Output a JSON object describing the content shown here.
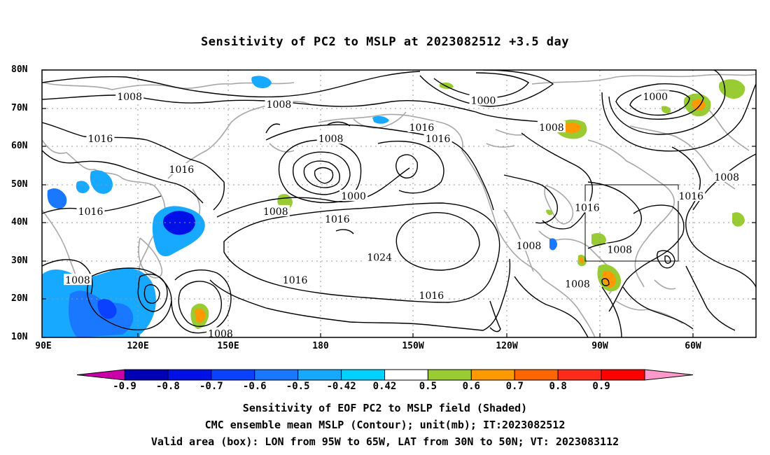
{
  "title": "Sensitivity of PC2 to MSLP at 2023082512 +3.5 day",
  "map": {
    "lat_labels": [
      "80N",
      "70N",
      "60N",
      "50N",
      "40N",
      "30N",
      "20N",
      "10N"
    ],
    "lon_labels": [
      "90E",
      "120E",
      "150E",
      "180",
      "150W",
      "120W",
      "90W",
      "60W"
    ],
    "lon_range": [
      "90E",
      "50W"
    ],
    "lat_range": [
      "10N",
      "80N"
    ],
    "box": {
      "lon_from": "95W",
      "lon_to": "65W",
      "lat_from": "30N",
      "lat_to": "50N"
    },
    "contour_labels": [
      {
        "text": "1008",
        "lon": 117,
        "lat": 73
      },
      {
        "text": "1008",
        "lon": 163,
        "lat": 71
      },
      {
        "text": "1000",
        "lon": 226,
        "lat": 72
      },
      {
        "text": "1000",
        "lon": 279,
        "lat": 73
      },
      {
        "text": "1008",
        "lon": 247,
        "lat": 65
      },
      {
        "text": "1016",
        "lon": 108,
        "lat": 62
      },
      {
        "text": "1016",
        "lon": 133,
        "lat": 54
      },
      {
        "text": "1016",
        "lon": 207,
        "lat": 65
      },
      {
        "text": "1016",
        "lon": 212,
        "lat": 62
      },
      {
        "text": "1008",
        "lon": 179,
        "lat": 62
      },
      {
        "text": "1000",
        "lon": 186,
        "lat": 47
      },
      {
        "text": "1008",
        "lon": 162,
        "lat": 43
      },
      {
        "text": "1016",
        "lon": 181,
        "lat": 41
      },
      {
        "text": "1016",
        "lon": 105,
        "lat": 43
      },
      {
        "text": "1016",
        "lon": 258,
        "lat": 44
      },
      {
        "text": "1016",
        "lon": 290,
        "lat": 47
      },
      {
        "text": "1008",
        "lon": 301,
        "lat": 52
      },
      {
        "text": "1008",
        "lon": 240,
        "lat": 34
      },
      {
        "text": "1008",
        "lon": 268,
        "lat": 33
      },
      {
        "text": "1024",
        "lon": 194,
        "lat": 31
      },
      {
        "text": "1016",
        "lon": 168,
        "lat": 25
      },
      {
        "text": "1016",
        "lon": 210,
        "lat": 21
      },
      {
        "text": "1008",
        "lon": 101,
        "lat": 25
      },
      {
        "text": "1008",
        "lon": 255,
        "lat": 24
      },
      {
        "text": "1008",
        "lon": 145,
        "lat": 11
      }
    ]
  },
  "colorbar": {
    "tick_labels": [
      "-0.9",
      "-0.8",
      "-0.7",
      "-0.6",
      "-0.5",
      "-0.42",
      "0.42",
      "0.5",
      "0.6",
      "0.7",
      "0.8",
      "0.9"
    ],
    "colors": [
      "#cc00a8",
      "#0000b4",
      "#0010e6",
      "#0a40ff",
      "#1978ff",
      "#17a8ff",
      "#00d2ff",
      "#ffffff",
      "#99cc33",
      "#ff9900",
      "#ff6600",
      "#ff2a1a",
      "#ff0000",
      "#ff99cc"
    ]
  },
  "captions": [
    "Sensitivity of EOF PC2 to MSLP field (Shaded)",
    "CMC ensemble mean MSLP (Contour); unit(mb); IT:2023082512",
    "Valid area (box): LON from 95W to 65W, LAT from 30N to 50N; VT: 2023083112"
  ]
}
